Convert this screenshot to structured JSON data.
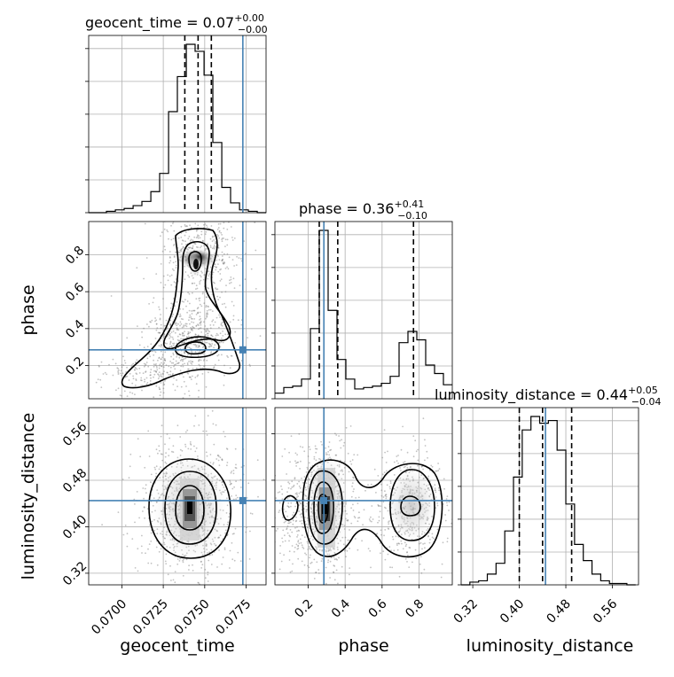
{
  "chart_data": {
    "type": "corner",
    "parameters": [
      "geocent_time",
      "phase",
      "luminosity_distance"
    ],
    "truths": {
      "geocent_time": 0.0773,
      "phase": 0.285,
      "luminosity_distance": 0.445
    },
    "diag_titles": [
      {
        "name": "geocent_time = 0.07",
        "sup": "+0.00",
        "sub": "−0.00"
      },
      {
        "name": "phase = 0.36",
        "sup": "+0.41",
        "sub": "−0.10"
      },
      {
        "name": "luminosity_distance = 0.44",
        "sup": "+0.05",
        "sub": "−0.04"
      }
    ],
    "axes_labels": {
      "x": [
        "geocent_time",
        "phase",
        "luminosity_distance"
      ],
      "y": [
        "phase",
        "luminosity_distance"
      ]
    },
    "ranges": {
      "geocent_time": [
        0.068,
        0.0787
      ],
      "phase": [
        0.02,
        0.98
      ],
      "luminosity_distance": [
        0.3,
        0.605
      ]
    },
    "ticks": {
      "geocent_time": {
        "values": [
          0.07,
          0.0725,
          0.075,
          0.0775
        ],
        "labels": [
          "0.0700",
          "0.0725",
          "0.0750",
          "0.0775"
        ]
      },
      "phase": {
        "values": [
          0.2,
          0.4,
          0.6,
          0.8
        ],
        "labels": [
          "0.2",
          "0.4",
          "0.6",
          "0.8"
        ]
      },
      "luminosity_distance": {
        "values": [
          0.32,
          0.4,
          0.48,
          0.56
        ],
        "labels": [
          "0.32",
          "0.40",
          "0.48",
          "0.56"
        ]
      }
    },
    "histograms": {
      "geocent_time": {
        "edges": [
          0.068,
          0.06854,
          0.06907,
          0.06961,
          0.07014,
          0.07068,
          0.07121,
          0.07175,
          0.07228,
          0.07282,
          0.07335,
          0.07389,
          0.07442,
          0.07496,
          0.07549,
          0.07603,
          0.07656,
          0.0771,
          0.07763,
          0.07817,
          0.0787
        ],
        "counts": [
          0,
          0,
          1,
          2,
          3,
          5,
          8,
          15,
          28,
          72,
          97,
          120,
          115,
          98,
          50,
          18,
          7,
          2,
          1,
          0
        ],
        "quantiles": [
          0.0738,
          0.0746,
          0.0754
        ]
      },
      "phase": {
        "edges": [
          0.02,
          0.068,
          0.116,
          0.164,
          0.212,
          0.26,
          0.308,
          0.356,
          0.404,
          0.452,
          0.5,
          0.548,
          0.596,
          0.644,
          0.692,
          0.74,
          0.788,
          0.836,
          0.884,
          0.932,
          0.98
        ],
        "counts": [
          4,
          8,
          9,
          14,
          50,
          120,
          63,
          28,
          14,
          7,
          8,
          9,
          11,
          16,
          40,
          48,
          42,
          24,
          18,
          10
        ],
        "quantiles": [
          0.26,
          0.36,
          0.77
        ]
      },
      "luminosity_distance": {
        "edges": [
          0.3,
          0.315,
          0.33,
          0.345,
          0.36,
          0.375,
          0.39,
          0.405,
          0.42,
          0.435,
          0.45,
          0.465,
          0.48,
          0.495,
          0.51,
          0.525,
          0.54,
          0.555,
          0.57,
          0.585,
          0.6
        ],
        "counts": [
          0,
          2,
          3,
          8,
          16,
          40,
          80,
          115,
          125,
          120,
          122,
          100,
          60,
          30,
          18,
          8,
          3,
          1,
          1,
          0
        ],
        "quantiles": [
          0.4,
          0.44,
          0.49
        ]
      }
    }
  }
}
